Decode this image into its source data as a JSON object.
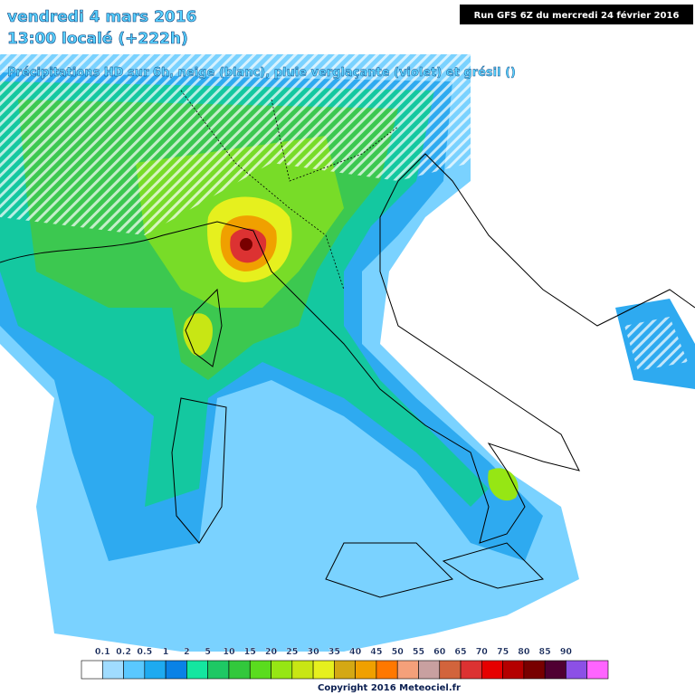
{
  "header": {
    "date": "vendredi 4 mars 2016",
    "time": "13:00 localé (+222h)",
    "run": "Run GFS 6Z du mercredi 24 février 2016",
    "subtitle": "Précipitations HD sur 6h, neige (blanc), pluie verglaçante (violet) et grésil ()"
  },
  "legend": {
    "labels": [
      "0.1",
      "0.2",
      "0.5",
      "1",
      "2",
      "5",
      "10",
      "15",
      "20",
      "25",
      "30",
      "35",
      "40",
      "45",
      "50",
      "55",
      "60",
      "65",
      "70",
      "75",
      "80",
      "85",
      "90"
    ],
    "colors": [
      "#ffffff",
      "#a0dcff",
      "#5ac8ff",
      "#1eaaf0",
      "#0a82e6",
      "#14e6a0",
      "#1ec864",
      "#32c83c",
      "#5adc1e",
      "#96e614",
      "#c8e614",
      "#e6f01e",
      "#d4a814",
      "#f0a000",
      "#ff7800",
      "#f4a07a",
      "#c8a0a0",
      "#d2643c",
      "#dc3232",
      "#e60000",
      "#b40000",
      "#780000",
      "#500032",
      "#8c50e6",
      "#ff64ff"
    ]
  },
  "footer": {
    "copyright": "Copyright 2016 Meteociel.fr"
  }
}
